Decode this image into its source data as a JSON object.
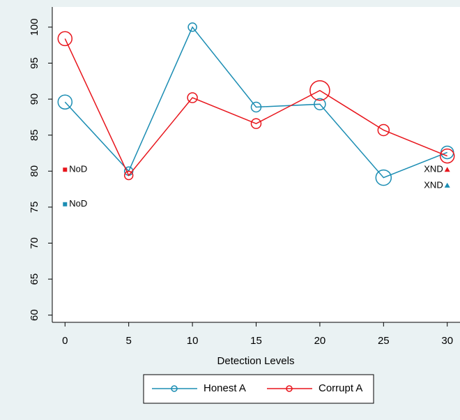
{
  "chart_data": {
    "type": "line",
    "x_label": "Detection Levels",
    "x": [
      0,
      5,
      10,
      15,
      20,
      25,
      30
    ],
    "series": [
      {
        "name": "Honest A",
        "color": "#1b8db3",
        "values": [
          89.6,
          80,
          100,
          88.9,
          89.3,
          79.1,
          82.6
        ],
        "sizes": [
          10,
          6,
          6,
          7,
          8,
          11,
          9
        ]
      },
      {
        "name": "Corrupt A",
        "color": "#e8151c",
        "values": [
          98.4,
          79.4,
          90.2,
          86.6,
          91.2,
          85.7,
          82.1
        ],
        "sizes": [
          10,
          6,
          7,
          7,
          14,
          8,
          10
        ]
      }
    ],
    "annotations": [
      {
        "text": "NoD",
        "x": 0,
        "y": 80.2,
        "color": "#e8151c",
        "marker": "square"
      },
      {
        "text": "NoD",
        "x": 0,
        "y": 75.4,
        "color": "#1b8db3",
        "marker": "square"
      },
      {
        "text": "XND",
        "x": 30,
        "y": 80.2,
        "color": "#e8151c",
        "marker": "triangle"
      },
      {
        "text": "XND",
        "x": 30,
        "y": 78,
        "color": "#1b8db3",
        "marker": "triangle"
      }
    ],
    "xlim": [
      -1,
      31
    ],
    "ylim": [
      59,
      102.8
    ],
    "xticks": [
      0,
      5,
      10,
      15,
      20,
      25,
      30
    ],
    "yticks": [
      60,
      65,
      70,
      75,
      80,
      85,
      90,
      95,
      100
    ]
  }
}
